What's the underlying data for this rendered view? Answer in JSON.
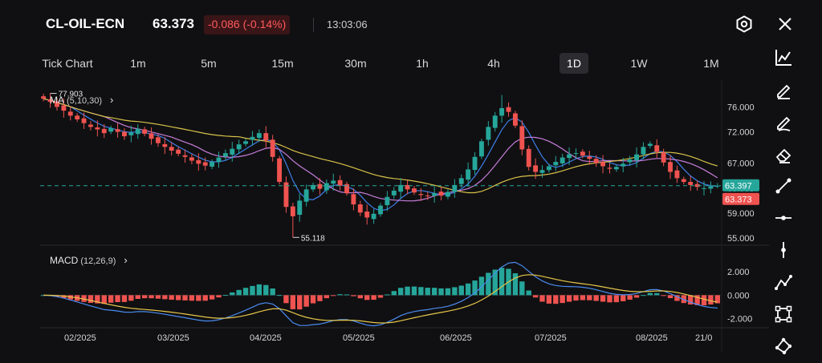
{
  "header": {
    "symbol": "CL-OIL-ECN",
    "price": "63.373",
    "change": "-0.086 (-0.14%)",
    "time": "13:03:06",
    "settings_icon": "hexagon-gear-icon",
    "close_icon": "close-icon"
  },
  "timeframes": [
    {
      "label": "Tick Chart",
      "active": false
    },
    {
      "label": "1m",
      "active": false
    },
    {
      "label": "5m",
      "active": false
    },
    {
      "label": "15m",
      "active": false
    },
    {
      "label": "30m",
      "active": false
    },
    {
      "label": "1h",
      "active": false
    },
    {
      "label": "4h",
      "active": false
    },
    {
      "label": "1D",
      "active": true
    },
    {
      "label": "1W",
      "active": false
    },
    {
      "label": "1M",
      "active": false
    }
  ],
  "tools": [
    "line-chart-icon",
    "pencil-edit-icon",
    "brush-icon",
    "eraser-icon",
    "trend-line-icon",
    "horizontal-line-icon",
    "vertical-line-icon",
    "polyline-icon",
    "rectangle-icon",
    "shape-icon"
  ],
  "colors": {
    "up": "#26a69a",
    "down": "#ef5350",
    "ma5": "#3f7ee8",
    "ma10": "#c77ddb",
    "ma30": "#d8c24a",
    "macd_line": "#4a8bf0",
    "signal_line": "#e6c64a",
    "background": "#101012"
  },
  "chart_data": [
    {
      "type": "candlestick",
      "indicator_label": "MA",
      "indicator_params": "(5,10,30)",
      "y_ticks": [
        76.0,
        72.0,
        67.0,
        63.0,
        59.0,
        55.0
      ],
      "ylim": [
        54.0,
        79.0
      ],
      "x_ticks": [
        "02/2025",
        "03/2025",
        "04/2025",
        "05/2025",
        "06/2025",
        "07/2025",
        "08/2025",
        "21/0"
      ],
      "high_label": "77.903",
      "low_label": "55.118",
      "current_ask": "63.397",
      "current_bid": "63.373",
      "ask_value": 63.397,
      "bid_value": 63.373,
      "close_path": [
        77.3,
        76.8,
        76.0,
        75.4,
        74.6,
        74.0,
        73.4,
        72.8,
        72.4,
        71.8,
        72.6,
        72.0,
        71.3,
        71.9,
        72.5,
        71.7,
        70.9,
        70.2,
        69.6,
        69.0,
        68.5,
        68.0,
        67.4,
        66.9,
        66.6,
        67.2,
        67.9,
        68.6,
        69.3,
        70.0,
        70.5,
        71.2,
        71.8,
        70.6,
        68.0,
        64.0,
        60.0,
        58.5,
        61.0,
        62.8,
        63.5,
        62.9,
        63.8,
        64.2,
        63.4,
        62.2,
        60.4,
        59.1,
        58.3,
        58.9,
        60.2,
        61.6,
        62.6,
        63.5,
        62.8,
        62.3,
        61.9,
        61.7,
        62.2,
        61.8,
        62.4,
        63.5,
        64.6,
        66.0,
        68.0,
        70.5,
        72.8,
        74.6,
        75.8,
        75.2,
        73.0,
        69.2,
        66.4,
        65.6,
        65.9,
        66.5,
        67.2,
        67.9,
        68.4,
        68.6,
        68.2,
        67.7,
        67.0,
        66.5,
        66.1,
        66.4,
        66.9,
        67.6,
        68.4,
        69.6,
        70.1,
        68.8,
        67.1,
        65.6,
        64.6,
        64.0,
        63.5,
        63.2,
        63.0,
        63.3,
        63.4
      ]
    },
    {
      "type": "macd",
      "indicator_label": "MACD",
      "indicator_params": "(12,26,9)",
      "y_ticks": [
        2.0,
        0.0,
        -2.0
      ],
      "ylim": [
        -2.5,
        3.3
      ]
    }
  ]
}
